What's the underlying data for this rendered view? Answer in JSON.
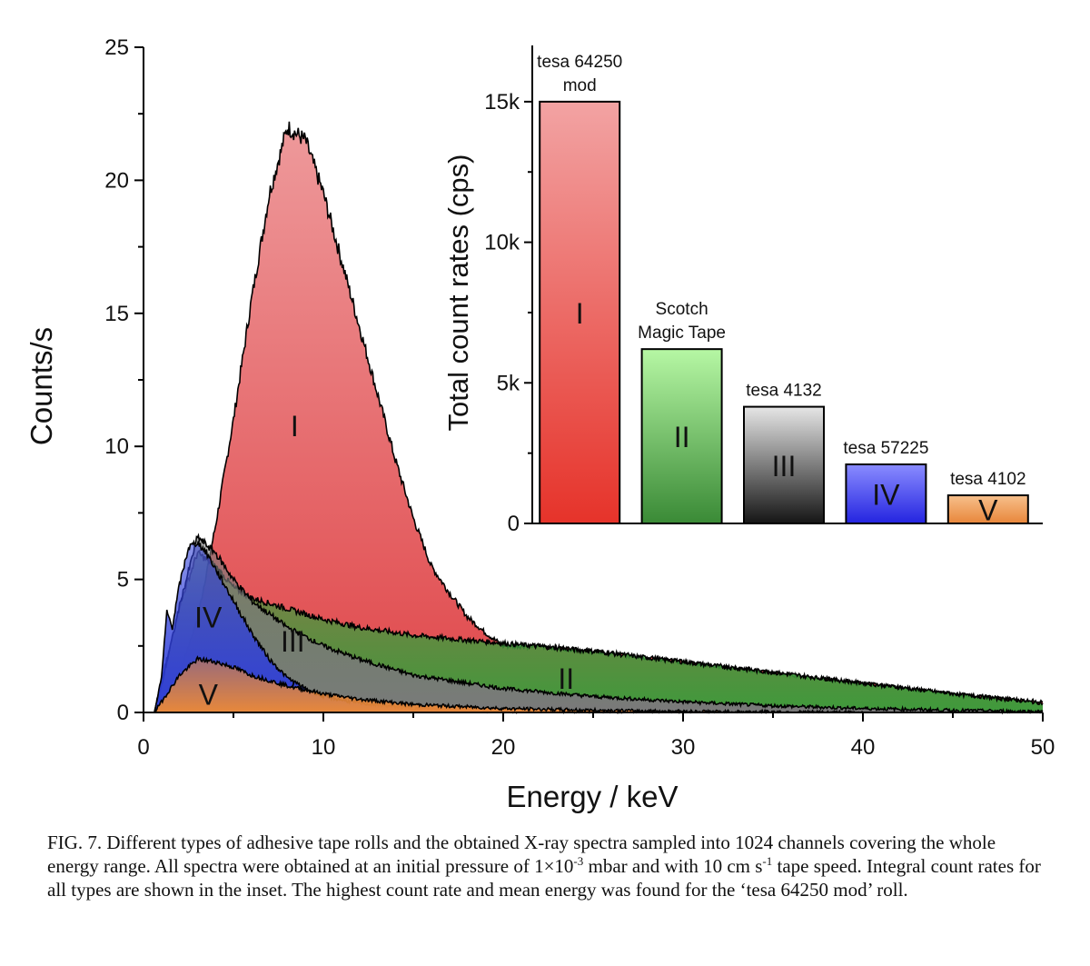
{
  "chart_data": [
    {
      "type": "area",
      "xlabel": "Energy / keV",
      "ylabel": "Counts/s",
      "xlim": [
        0,
        50
      ],
      "ylim": [
        0,
        25
      ],
      "xticks": [
        0,
        10,
        20,
        30,
        40,
        50
      ],
      "yticks": [
        0,
        5,
        10,
        15,
        20,
        25
      ],
      "grid": false,
      "series": [
        {
          "name": "I",
          "color": "#e0474a",
          "x": [
            0.6,
            1,
            2,
            3,
            4,
            5,
            6,
            7,
            8,
            9,
            10,
            11,
            12,
            13,
            14,
            15,
            16,
            17,
            18,
            19,
            20,
            22,
            25,
            30,
            35,
            40,
            45,
            50
          ],
          "y": [
            0,
            0.5,
            1.5,
            3.5,
            7,
            11,
            15.5,
            19.5,
            22,
            21.5,
            19.5,
            17,
            14.5,
            12,
            9.5,
            7.3,
            5.5,
            4.5,
            3.6,
            3,
            2.5,
            2.5,
            2.3,
            1.9,
            1.5,
            1.1,
            0.7,
            0.4
          ]
        },
        {
          "name": "II",
          "color": "#3f9a3c",
          "x": [
            0.6,
            1,
            1.5,
            2,
            3,
            4,
            5,
            6,
            8,
            10,
            12,
            15,
            20,
            25,
            30,
            35,
            40,
            45,
            50
          ],
          "y": [
            0,
            1.2,
            2.5,
            4,
            6,
            5.5,
            4.7,
            4.3,
            3.9,
            3.5,
            3.2,
            2.9,
            2.6,
            2.3,
            1.9,
            1.5,
            1.1,
            0.7,
            0.35
          ]
        },
        {
          "name": "III",
          "color": "#7a7a7a",
          "x": [
            0.6,
            1,
            2,
            3,
            4,
            5,
            6,
            8,
            10,
            12,
            15,
            20,
            25,
            30,
            35,
            40,
            45,
            50
          ],
          "y": [
            0,
            1.0,
            4,
            6.6,
            6,
            5,
            4.2,
            3.2,
            2.5,
            2.0,
            1.4,
            0.9,
            0.6,
            0.4,
            0.25,
            0.15,
            0.08,
            0.03
          ]
        },
        {
          "name": "IV",
          "color": "#2f3fd8",
          "x": [
            0.6,
            1,
            1.3,
            1.6,
            2,
            2.5,
            3,
            3.5,
            4,
            5,
            6,
            7,
            8,
            9,
            10,
            12,
            15,
            20,
            25,
            30
          ],
          "y": [
            0,
            1.3,
            3.8,
            3.2,
            4.8,
            6.2,
            6.4,
            6,
            5.4,
            4.2,
            3.0,
            2.0,
            1.3,
            0.9,
            0.6,
            0.35,
            0.15,
            0.05,
            0.02,
            0
          ]
        },
        {
          "name": "V",
          "color": "#e8883a",
          "x": [
            0.6,
            1,
            2,
            3,
            4,
            5,
            6,
            8,
            10,
            12,
            15,
            20,
            25,
            30,
            35,
            40
          ],
          "y": [
            0,
            0.4,
            1.4,
            2.0,
            1.9,
            1.7,
            1.4,
            1.0,
            0.7,
            0.5,
            0.3,
            0.15,
            0.08,
            0.04,
            0.02,
            0
          ]
        }
      ],
      "series_labels": [
        {
          "text": "I",
          "x": 8.4,
          "y": 10.8
        },
        {
          "text": "II",
          "x": 23.5,
          "y": 1.3
        },
        {
          "text": "III",
          "x": 8.3,
          "y": 2.7
        },
        {
          "text": "IV",
          "x": 3.6,
          "y": 3.6
        },
        {
          "text": "V",
          "x": 3.6,
          "y": 0.7
        }
      ]
    },
    {
      "type": "bar",
      "ylabel": "Total count rates (cps)",
      "ylim": [
        0,
        17000
      ],
      "yticks": [
        0,
        5000,
        10000,
        15000
      ],
      "ytick_labels": [
        "0",
        "5k",
        "10k",
        "15k"
      ],
      "categories": [
        "I",
        "II",
        "III",
        "IV",
        "V"
      ],
      "values": [
        15000,
        6200,
        4150,
        2100,
        1000
      ],
      "names": [
        [
          "tesa 64250",
          "mod"
        ],
        [
          "Scotch",
          "Magic Tape"
        ],
        [
          "tesa 4132"
        ],
        [
          "tesa 57225"
        ],
        [
          "tesa 4102"
        ]
      ],
      "colors": [
        [
          "#f2a3a3",
          "#e6332a"
        ],
        [
          "#b6f7a4",
          "#3a8a36"
        ],
        [
          "#e6e6e6",
          "#151515"
        ],
        [
          "#8a8cff",
          "#2424e0"
        ],
        [
          "#f7c08c",
          "#e8863a"
        ]
      ]
    }
  ],
  "caption": {
    "p1": "FIG. 7. Different types of adhesive tape rolls and the obtained X-ray spectra sampled into 1024 channels covering the whole energy range. All spectra were obtained at an initial pressure of 1×10",
    "sup1": "-3",
    "p2": " mbar and with 10 cm s",
    "sup2": "-1",
    "p3": " tape speed. Integral count rates for all types are shown in the inset. The highest count rate and mean energy was found for the ‘tesa 64250 mod’ roll."
  }
}
